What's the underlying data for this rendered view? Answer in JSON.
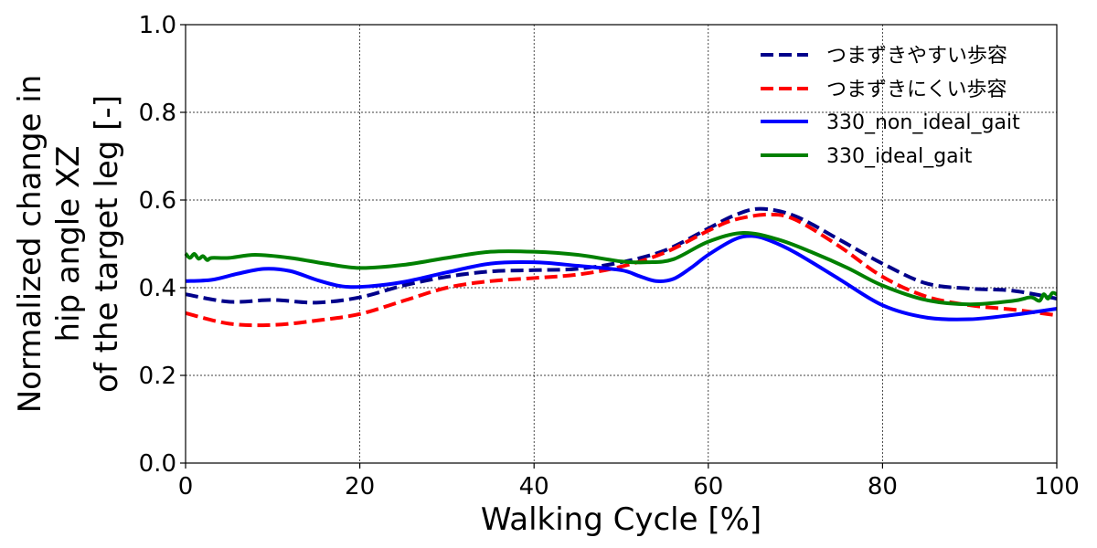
{
  "chart_data": {
    "type": "line",
    "xlabel": "Walking Cycle [%]",
    "ylabel_lines": [
      "Normalized change in",
      "hip angle XZ",
      "of the target leg [-]"
    ],
    "xlim": [
      0,
      100
    ],
    "ylim": [
      0.0,
      1.0
    ],
    "xticks": [
      0,
      20,
      40,
      60,
      80,
      100
    ],
    "yticks": [
      0.0,
      0.2,
      0.4,
      0.6,
      0.8,
      1.0
    ],
    "xtick_labels": [
      "0",
      "20",
      "40",
      "60",
      "80",
      "100"
    ],
    "ytick_labels": [
      "0.0",
      "0.2",
      "0.4",
      "0.6",
      "0.8",
      "1.0"
    ],
    "grid": true,
    "legend_position": "top-right",
    "series": [
      {
        "name": "つまずきやすい歩容",
        "color": "#00008b",
        "dash": "dashed",
        "x": [
          0,
          5,
          10,
          15,
          20,
          25,
          30,
          35,
          40,
          45,
          50,
          55,
          60,
          63,
          66,
          70,
          75,
          80,
          85,
          90,
          95,
          100
        ],
        "y": [
          0.385,
          0.368,
          0.372,
          0.366,
          0.378,
          0.405,
          0.425,
          0.437,
          0.44,
          0.443,
          0.458,
          0.485,
          0.535,
          0.565,
          0.58,
          0.563,
          0.51,
          0.455,
          0.41,
          0.398,
          0.393,
          0.375
        ]
      },
      {
        "name": "つまずきにくい歩容",
        "color": "#ff0000",
        "dash": "dashed",
        "x": [
          0,
          5,
          10,
          15,
          20,
          25,
          30,
          35,
          40,
          45,
          50,
          55,
          60,
          63,
          67,
          70,
          75,
          80,
          85,
          90,
          95,
          100
        ],
        "y": [
          0.342,
          0.318,
          0.315,
          0.325,
          0.34,
          0.37,
          0.4,
          0.415,
          0.422,
          0.43,
          0.448,
          0.48,
          0.53,
          0.555,
          0.567,
          0.555,
          0.495,
          0.425,
          0.38,
          0.36,
          0.35,
          0.337
        ]
      },
      {
        "name": "330_non_ideal_gait",
        "color": "#0000ff",
        "dash": "solid",
        "x": [
          0,
          3,
          6,
          9,
          12,
          15,
          18,
          21,
          25,
          30,
          35,
          40,
          45,
          50,
          52,
          54,
          56,
          58,
          60,
          63,
          65,
          67,
          70,
          75,
          80,
          85,
          90,
          95,
          100
        ],
        "y": [
          0.415,
          0.418,
          0.432,
          0.443,
          0.438,
          0.418,
          0.403,
          0.403,
          0.413,
          0.435,
          0.455,
          0.458,
          0.45,
          0.44,
          0.427,
          0.415,
          0.42,
          0.445,
          0.475,
          0.51,
          0.518,
          0.508,
          0.48,
          0.42,
          0.36,
          0.332,
          0.328,
          0.338,
          0.352
        ]
      },
      {
        "name": "330_ideal_gait",
        "color": "#008000",
        "dash": "solid",
        "x": [
          0,
          0.5,
          1,
          1.5,
          2,
          2.5,
          3,
          5,
          8,
          12,
          16,
          20,
          25,
          30,
          35,
          40,
          45,
          50,
          53,
          56,
          60,
          64,
          68,
          72,
          76,
          80,
          85,
          90,
          95,
          97,
          98,
          98.5,
          99,
          99.5,
          100
        ],
        "y": [
          0.478,
          0.468,
          0.477,
          0.466,
          0.472,
          0.463,
          0.468,
          0.468,
          0.475,
          0.468,
          0.455,
          0.445,
          0.452,
          0.468,
          0.482,
          0.482,
          0.475,
          0.46,
          0.458,
          0.465,
          0.505,
          0.525,
          0.51,
          0.48,
          0.445,
          0.405,
          0.372,
          0.362,
          0.37,
          0.378,
          0.37,
          0.385,
          0.375,
          0.388,
          0.385
        ]
      }
    ]
  }
}
